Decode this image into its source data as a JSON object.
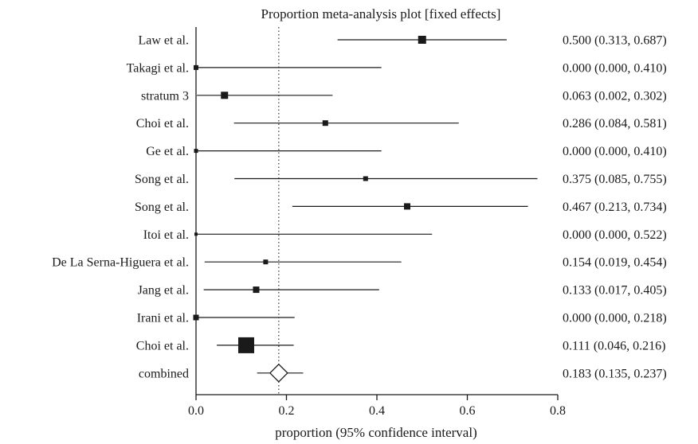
{
  "chart_data": {
    "type": "forest",
    "title": "Proportion meta-analysis plot [fixed effects]",
    "xlabel": "proportion (95% confidence interval)",
    "xlim": [
      0,
      0.8
    ],
    "xticks": [
      0,
      0.2,
      0.4,
      0.6,
      0.8
    ],
    "xtick_labels": [
      "0.0",
      "0.2",
      "0.4",
      "0.6",
      "0.8"
    ],
    "reference_line": 0.183,
    "studies": [
      {
        "label": "Law et al.",
        "estimate": 0.5,
        "lower": 0.313,
        "upper": 0.687,
        "ci_text": "0.500 (0.313, 0.687)"
      },
      {
        "label": "Takagi et al.",
        "estimate": 0.0,
        "lower": 0.0,
        "upper": 0.41,
        "ci_text": "0.000 (0.000, 0.410)"
      },
      {
        "label": "stratum 3",
        "estimate": 0.063,
        "lower": 0.002,
        "upper": 0.302,
        "ci_text": "0.063 (0.002, 0.302)"
      },
      {
        "label": "Choi et al.",
        "estimate": 0.286,
        "lower": 0.084,
        "upper": 0.581,
        "ci_text": "0.286 (0.084, 0.581)"
      },
      {
        "label": "Ge et al.",
        "estimate": 0.0,
        "lower": 0.0,
        "upper": 0.41,
        "ci_text": "0.000 (0.000, 0.410)"
      },
      {
        "label": "Song et al.",
        "estimate": 0.375,
        "lower": 0.085,
        "upper": 0.755,
        "ci_text": "0.375 (0.085, 0.755)"
      },
      {
        "label": "Song et al.",
        "estimate": 0.467,
        "lower": 0.213,
        "upper": 0.734,
        "ci_text": "0.467 (0.213, 0.734)"
      },
      {
        "label": "Itoi et al.",
        "estimate": 0.0,
        "lower": 0.0,
        "upper": 0.522,
        "ci_text": "0.000 (0.000, 0.522)"
      },
      {
        "label": "De La Serna-Higuera et al.",
        "estimate": 0.154,
        "lower": 0.019,
        "upper": 0.454,
        "ci_text": "0.154 (0.019, 0.454)"
      },
      {
        "label": "Jang et al.",
        "estimate": 0.133,
        "lower": 0.017,
        "upper": 0.405,
        "ci_text": "0.133 (0.017, 0.405)"
      },
      {
        "label": "Irani et al.",
        "estimate": 0.0,
        "lower": 0.0,
        "upper": 0.218,
        "ci_text": "0.000 (0.000, 0.218)"
      },
      {
        "label": "Choi et al.",
        "estimate": 0.111,
        "lower": 0.046,
        "upper": 0.216,
        "ci_text": "0.111 (0.046, 0.216)"
      }
    ],
    "combined": {
      "label": "combined",
      "estimate": 0.183,
      "lower": 0.135,
      "upper": 0.237,
      "ci_text": "0.183 (0.135, 0.237)"
    },
    "study_weights": [
      10,
      6,
      9,
      7,
      5,
      6,
      8,
      4,
      6,
      8,
      7,
      20
    ]
  }
}
